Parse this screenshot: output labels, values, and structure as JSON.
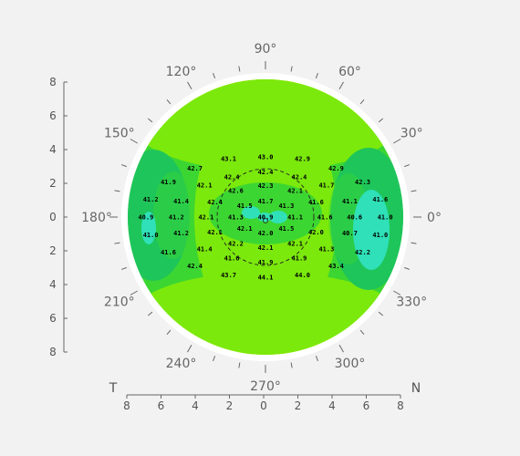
{
  "chart_data": {
    "type": "heatmap",
    "subtype": "polar corneal topography map",
    "colors": {
      "background": "#f2f2f2",
      "dark_green": "#1ec55a",
      "mid_green": "#3cd632",
      "light_green": "#7be90c",
      "yellow_green": "#c3ee00",
      "yellow": "#f5f500",
      "cyan": "#2fe0b8",
      "ring": "#ffffff"
    },
    "angle_labels": [
      {
        "deg": 0,
        "label": "0°"
      },
      {
        "deg": 30,
        "label": "30°"
      },
      {
        "deg": 60,
        "label": "60°"
      },
      {
        "deg": 90,
        "label": "90°"
      },
      {
        "deg": 120,
        "label": "120°"
      },
      {
        "deg": 150,
        "label": "150°"
      },
      {
        "deg": 180,
        "label": "180°"
      },
      {
        "deg": 210,
        "label": "210°"
      },
      {
        "deg": 240,
        "label": "240°"
      },
      {
        "deg": 270,
        "label": "270°"
      },
      {
        "deg": 300,
        "label": "300°"
      },
      {
        "deg": 330,
        "label": "330°"
      }
    ],
    "x_axis": {
      "ticks": [
        "8",
        "6",
        "4",
        "2",
        "0",
        "2",
        "4",
        "6",
        "8"
      ],
      "left_label": "T",
      "right_label": "N",
      "range": [
        -8,
        8
      ]
    },
    "y_axis": {
      "ticks": [
        "8",
        "6",
        "4",
        "2",
        "0",
        "2",
        "4",
        "6",
        "8"
      ],
      "range": [
        -8,
        8
      ]
    },
    "inner_circle_diameter": 6,
    "points": [
      {
        "x": 0.0,
        "y": 7.5,
        "v": "43.0"
      },
      {
        "x": -4.6,
        "y": 7.3,
        "v": "43.1"
      },
      {
        "x": 4.6,
        "y": 7.3,
        "v": "42.9"
      },
      {
        "x": -8.8,
        "y": 6.1,
        "v": "42.7"
      },
      {
        "x": 8.8,
        "y": 6.1,
        "v": "42.9"
      },
      {
        "x": 0.0,
        "y": 5.6,
        "v": "42.4"
      },
      {
        "x": -4.2,
        "y": 5.0,
        "v": "42.4"
      },
      {
        "x": 4.2,
        "y": 5.0,
        "v": "42.4"
      },
      {
        "x": -12.1,
        "y": 4.4,
        "v": "41.9"
      },
      {
        "x": 12.1,
        "y": 4.4,
        "v": "42.3"
      },
      {
        "x": -7.6,
        "y": 4.0,
        "v": "42.1"
      },
      {
        "x": 7.6,
        "y": 4.0,
        "v": "41.7"
      },
      {
        "x": 0.0,
        "y": 3.9,
        "v": "42.3"
      },
      {
        "x": -3.7,
        "y": 3.3,
        "v": "42.6"
      },
      {
        "x": 3.7,
        "y": 3.3,
        "v": "42.1"
      },
      {
        "x": -14.3,
        "y": 2.2,
        "v": "41.2"
      },
      {
        "x": 14.3,
        "y": 2.2,
        "v": "41.6"
      },
      {
        "x": -10.5,
        "y": 2.0,
        "v": "41.4"
      },
      {
        "x": 10.5,
        "y": 2.0,
        "v": "41.1"
      },
      {
        "x": -6.3,
        "y": 1.9,
        "v": "42.4"
      },
      {
        "x": 6.3,
        "y": 1.9,
        "v": "41.6"
      },
      {
        "x": 0.0,
        "y": 2.0,
        "v": "41.7"
      },
      {
        "x": -2.6,
        "y": 1.4,
        "v": "41.5"
      },
      {
        "x": 2.6,
        "y": 1.4,
        "v": "41.3"
      },
      {
        "x": -14.9,
        "y": 0.0,
        "v": "40.9"
      },
      {
        "x": -11.1,
        "y": 0.0,
        "v": "41.2"
      },
      {
        "x": -7.4,
        "y": 0.0,
        "v": "42.1"
      },
      {
        "x": -3.7,
        "y": 0.0,
        "v": "41.3"
      },
      {
        "x": 0.0,
        "y": 0.0,
        "v": "40.9"
      },
      {
        "x": 3.7,
        "y": 0.0,
        "v": "41.1"
      },
      {
        "x": 7.4,
        "y": 0.0,
        "v": "41.6"
      },
      {
        "x": 11.1,
        "y": 0.0,
        "v": "40.6"
      },
      {
        "x": 14.9,
        "y": 0.0,
        "v": "41.0"
      },
      {
        "x": -2.6,
        "y": -1.4,
        "v": "42.1"
      },
      {
        "x": 2.6,
        "y": -1.4,
        "v": "41.5"
      },
      {
        "x": 0.0,
        "y": -2.0,
        "v": "42.0"
      },
      {
        "x": -6.3,
        "y": -1.9,
        "v": "42.1"
      },
      {
        "x": 6.3,
        "y": -1.9,
        "v": "42.0"
      },
      {
        "x": -10.5,
        "y": -2.0,
        "v": "41.2"
      },
      {
        "x": 10.5,
        "y": -2.0,
        "v": "40.7"
      },
      {
        "x": -14.3,
        "y": -2.2,
        "v": "41.0"
      },
      {
        "x": 14.3,
        "y": -2.2,
        "v": "41.0"
      },
      {
        "x": -3.7,
        "y": -3.3,
        "v": "42.2"
      },
      {
        "x": 3.7,
        "y": -3.3,
        "v": "42.1"
      },
      {
        "x": 0.0,
        "y": -3.8,
        "v": "42.1"
      },
      {
        "x": -7.6,
        "y": -4.0,
        "v": "41.4"
      },
      {
        "x": 7.6,
        "y": -4.0,
        "v": "41.3"
      },
      {
        "x": -12.1,
        "y": -4.4,
        "v": "41.6"
      },
      {
        "x": 12.1,
        "y": -4.4,
        "v": "42.2"
      },
      {
        "x": -4.2,
        "y": -5.1,
        "v": "41.6"
      },
      {
        "x": 4.2,
        "y": -5.1,
        "v": "41.9"
      },
      {
        "x": 0.0,
        "y": -5.6,
        "v": "41.9"
      },
      {
        "x": -8.8,
        "y": -6.1,
        "v": "42.4"
      },
      {
        "x": 8.8,
        "y": -6.1,
        "v": "43.4"
      },
      {
        "x": -4.6,
        "y": -7.2,
        "v": "43.7"
      },
      {
        "x": 4.6,
        "y": -7.2,
        "v": "44.0"
      },
      {
        "x": 0.0,
        "y": -7.5,
        "v": "44.1"
      }
    ]
  }
}
